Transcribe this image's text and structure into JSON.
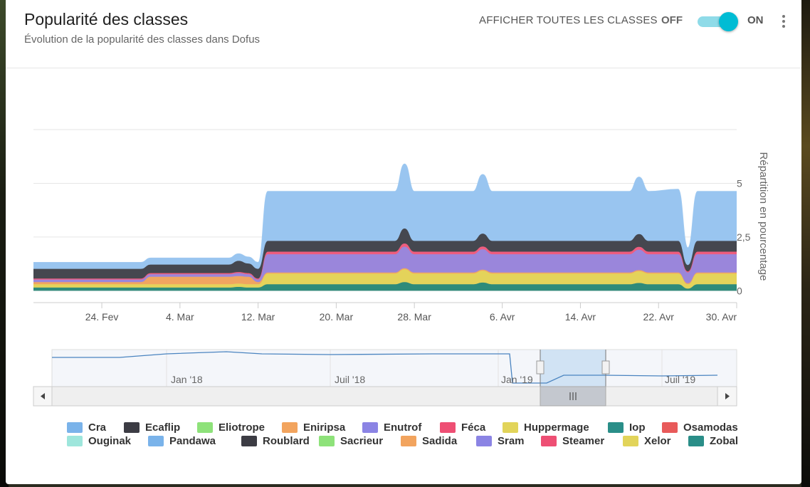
{
  "header": {
    "title": "Popularité des classes",
    "subtitle": "Évolution de la popularité des classes dans Dofus",
    "toggle_label": "AFFICHER TOUTES LES CLASSES",
    "off_label": "OFF",
    "on_label": "ON",
    "toggle_state": "on",
    "accent_color": "#00bcd4"
  },
  "chart_data": {
    "type": "area",
    "stacked": true,
    "ylabel": "Répartition en pourcentage",
    "ylim": [
      -0.55,
      7.5
    ],
    "y_ticks": [
      0,
      2.5,
      5
    ],
    "y_tick_labels": [
      "0",
      "2,5",
      "5"
    ],
    "x_tick_labels": [
      "24. Fev",
      "4. Mar",
      "12. Mar",
      "20. Mar",
      "28. Mar",
      "6. Avr",
      "14. Avr",
      "22. Avr",
      "30. Avr"
    ],
    "x_tick_dates": [
      "2019-02-24",
      "2019-03-04",
      "2019-03-12",
      "2019-03-20",
      "2019-03-28",
      "2019-04-06",
      "2019-04-14",
      "2019-04-22",
      "2019-04-30"
    ],
    "x_range": [
      "2019-02-17",
      "2019-04-30"
    ],
    "grid": true,
    "legend_position": "bottom",
    "x": [
      "2019-02-17",
      "2019-02-28",
      "2019-03-01",
      "2019-03-09",
      "2019-03-10",
      "2019-03-11",
      "2019-03-12",
      "2019-03-13",
      "2019-03-26",
      "2019-03-27",
      "2019-03-28",
      "2019-04-03",
      "2019-04-04",
      "2019-04-05",
      "2019-04-19",
      "2019-04-20",
      "2019-04-21",
      "2019-04-24",
      "2019-04-25",
      "2019-04-26",
      "2019-04-30"
    ],
    "series": [
      {
        "name": "Iop",
        "color": "#2e8b7a",
        "values": [
          0.15,
          0.15,
          0.15,
          0.15,
          0.18,
          0.15,
          0.15,
          0.3,
          0.3,
          0.4,
          0.3,
          0.3,
          0.38,
          0.3,
          0.3,
          0.36,
          0.3,
          0.3,
          0.1,
          0.3,
          0.3
        ]
      },
      {
        "name": "Huppermage",
        "color": "#e4d35a",
        "values": [
          0.15,
          0.15,
          0.15,
          0.15,
          0.15,
          0.15,
          0.15,
          0.5,
          0.5,
          0.6,
          0.5,
          0.5,
          0.55,
          0.5,
          0.5,
          0.55,
          0.5,
          0.5,
          0.2,
          0.5,
          0.5
        ]
      },
      {
        "name": "Eniripsa",
        "color": "#f0a560",
        "values": [
          0.1,
          0.1,
          0.35,
          0.35,
          0.35,
          0.35,
          0.1,
          0.05,
          0.05,
          0.05,
          0.05,
          0.05,
          0.05,
          0.05,
          0.05,
          0.05,
          0.05,
          0.05,
          0.05,
          0.05,
          0.05
        ]
      },
      {
        "name": "Enutrof",
        "color": "#9a86db",
        "values": [
          0.12,
          0.12,
          0.12,
          0.12,
          0.14,
          0.12,
          0.12,
          0.85,
          0.85,
          1.0,
          0.85,
          0.85,
          0.95,
          0.85,
          0.85,
          0.95,
          0.85,
          0.85,
          0.5,
          0.85,
          0.85
        ]
      },
      {
        "name": "Féca",
        "color": "#ee5d7e",
        "values": [
          0.05,
          0.05,
          0.05,
          0.05,
          0.05,
          0.05,
          0.05,
          0.12,
          0.12,
          0.15,
          0.12,
          0.12,
          0.13,
          0.12,
          0.12,
          0.13,
          0.12,
          0.12,
          0.05,
          0.12,
          0.12
        ]
      },
      {
        "name": "Ecaflip",
        "color": "#45474f",
        "values": [
          0.45,
          0.45,
          0.4,
          0.4,
          0.52,
          0.45,
          0.45,
          0.5,
          0.5,
          0.7,
          0.5,
          0.5,
          0.6,
          0.5,
          0.5,
          0.6,
          0.5,
          0.5,
          0.3,
          0.5,
          0.5
        ]
      },
      {
        "name": "Cra",
        "color": "#99c5f0",
        "values": [
          0.3,
          0.3,
          0.3,
          0.3,
          0.33,
          0.3,
          0.3,
          2.3,
          2.3,
          3.0,
          2.3,
          2.3,
          2.75,
          2.3,
          2.3,
          2.65,
          2.3,
          2.4,
          0.8,
          2.3,
          2.3
        ]
      }
    ],
    "navigator": {
      "x_tick_labels": [
        "Jan '18",
        "Juil '18",
        "Jan '19",
        "Juil '19"
      ],
      "selected_range": [
        "2019-02-17",
        "2019-04-30"
      ]
    }
  },
  "legend": {
    "row1": [
      {
        "label": "Cra",
        "color": "#7ab3ea"
      },
      {
        "label": "Ecaflip",
        "color": "#3c3c44"
      },
      {
        "label": "Eliotrope",
        "color": "#8ee27a"
      },
      {
        "label": "Eniripsa",
        "color": "#f2a45e"
      },
      {
        "label": "Enutrof",
        "color": "#8b84e4"
      },
      {
        "label": "Féca",
        "color": "#ee4f74"
      },
      {
        "label": "Huppermage",
        "color": "#e2d45a"
      },
      {
        "label": "Iop",
        "color": "#2a8e88"
      },
      {
        "label": "Osamodas",
        "color": "#e85a5a"
      }
    ],
    "row2": [
      {
        "label": "Ouginak",
        "color": "#9ee6dc"
      },
      {
        "label": "Pandawa",
        "color": "#7ab3ea"
      },
      {
        "label": "Roublard",
        "color": "#3c3c44"
      },
      {
        "label": "Sacrieur",
        "color": "#8ee27a"
      },
      {
        "label": "Sadida",
        "color": "#f2a45e"
      },
      {
        "label": "Sram",
        "color": "#8b84e4"
      },
      {
        "label": "Steamer",
        "color": "#ee4f74"
      },
      {
        "label": "Xelor",
        "color": "#e2d45a"
      },
      {
        "label": "Zobal",
        "color": "#2a8e88"
      }
    ]
  }
}
